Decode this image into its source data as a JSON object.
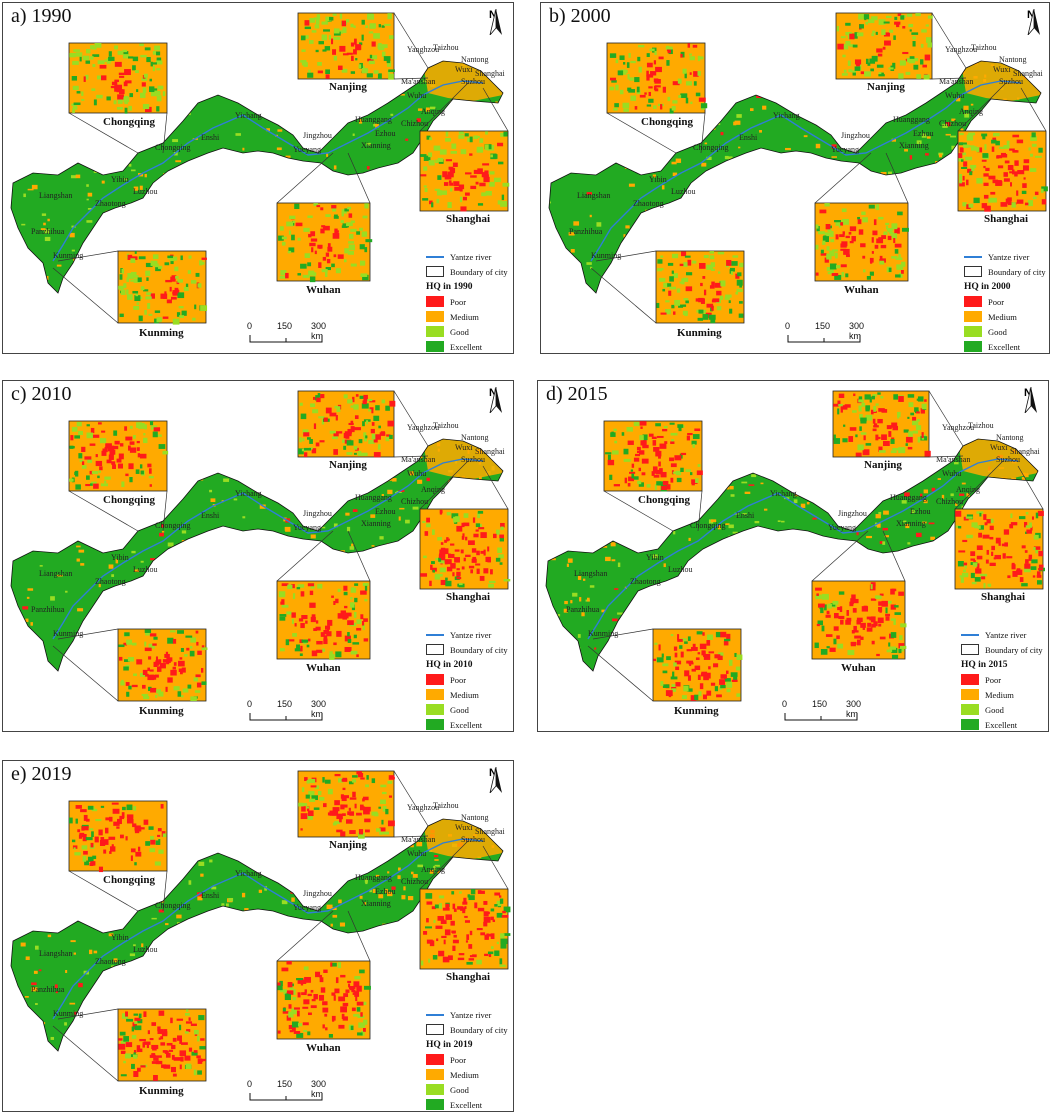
{
  "panels": [
    {
      "id": "a",
      "title": "a) 1990",
      "legend_hq": "HQ in 1990"
    },
    {
      "id": "b",
      "title": "b) 2000",
      "legend_hq": "HQ in 2000"
    },
    {
      "id": "c",
      "title": "c) 2010",
      "legend_hq": "HQ in 2010"
    },
    {
      "id": "d",
      "title": "d) 2015",
      "legend_hq": "HQ in 2015"
    },
    {
      "id": "e",
      "title": "e) 2019",
      "legend_hq": "HQ in 2019"
    }
  ],
  "insets": {
    "chongqing": "Chongqing",
    "nanjing": "Nanjing",
    "shanghai": "Shanghai",
    "wuhan": "Wuhan",
    "kunming": "Kunming"
  },
  "legend": {
    "river": "Yantze river",
    "boundary": "Boundary of city",
    "classes": [
      {
        "label": "Poor",
        "color": "#ff1a1a"
      },
      {
        "label": "Medium",
        "color": "#ffaa00"
      },
      {
        "label": "Good",
        "color": "#99dd22"
      },
      {
        "label": "Excellent",
        "color": "#22aa22"
      }
    ]
  },
  "scale": {
    "t0": "0",
    "t1": "150",
    "t2": "300 km"
  },
  "north": "N",
  "cities": [
    "Yanghzou",
    "Taizhou",
    "Nantong",
    "Wuxi",
    "Shanghai",
    "Suzhou",
    "Ma'anshan",
    "Wuhu",
    "Chizhou",
    "Anqing",
    "Huanggang",
    "Ezhou",
    "Xianning",
    "Jingzhou",
    "Yueyang",
    "Yichang",
    "Enshi",
    "Chongqing",
    "Yibin",
    "Luzhou",
    "Zhaotong",
    "Liangshan",
    "Panzhihua",
    "Kunming"
  ]
}
